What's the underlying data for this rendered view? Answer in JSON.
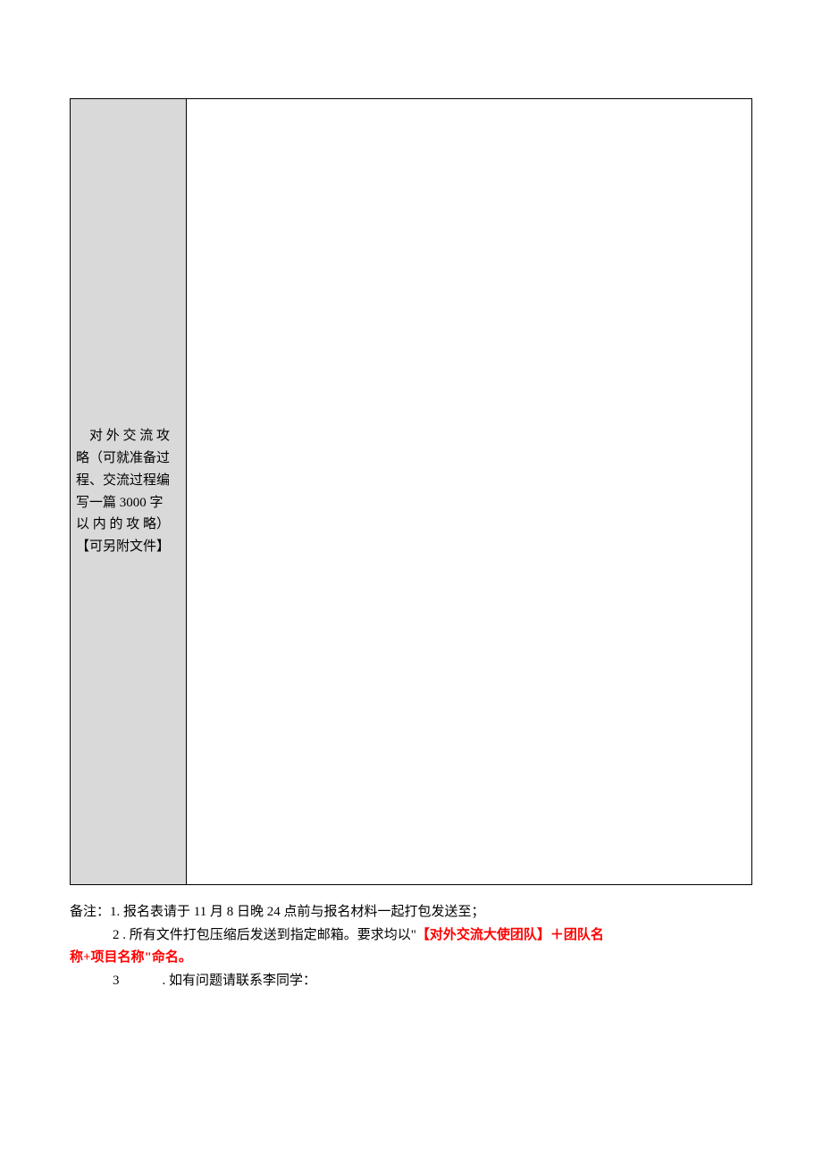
{
  "table": {
    "label_line1": "对 外 交 流 攻",
    "label_line2": "略（可就准备过",
    "label_line3": "程、交流过程编",
    "label_line4": "写一篇 3000 字",
    "label_line5": "以 内 的 攻 略）",
    "label_line6": "【可另附文件】",
    "content": ""
  },
  "notes": {
    "line1": "备注：1. 报名表请于 11 月 8 日晚 24 点前与报名材料一起打包发送至；",
    "line2_prefix": "2 . 所有文件打包压缩后发送到指定邮箱。要求均以",
    "line2_quote_open": "\"",
    "line2_red_a": "【对外交流大使团队】＋团队名",
    "line2_red_b": "称+项目名称\"命名。",
    "line3_num": "3",
    "line3_text": ". 如有问题请联系李同学："
  },
  "colors": {
    "page_bg": "#ffffff",
    "cell_label_bg": "#d9d9d9",
    "border": "#000000",
    "text": "#000000",
    "highlight": "#ff0000"
  }
}
